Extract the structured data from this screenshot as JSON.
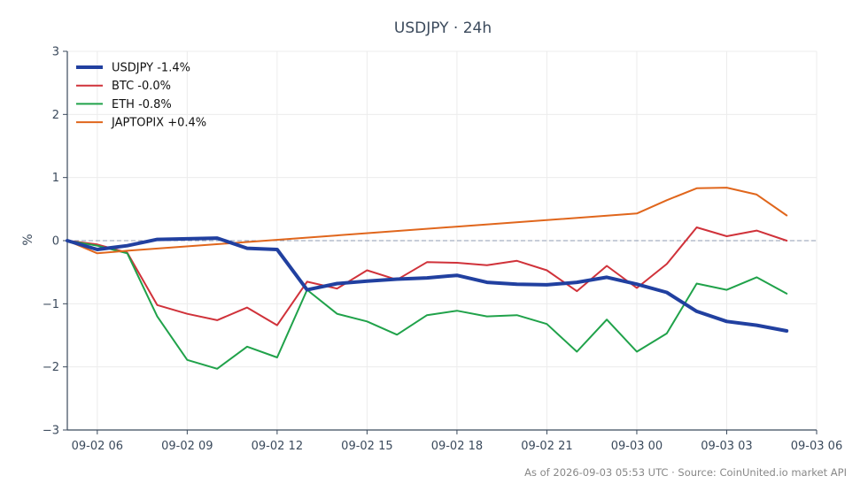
{
  "chart_data": {
    "type": "line",
    "title": "USDJPY · 24h",
    "xlabel": "",
    "ylabel": "%",
    "ylim": [
      -3,
      3
    ],
    "xlim": [
      "2026-09-02T05:00",
      "2026-09-03T06:00"
    ],
    "x_ticks": [
      "09-02 06",
      "09-02 09",
      "09-02 12",
      "09-02 15",
      "09-02 18",
      "09-02 21",
      "09-03 00",
      "09-03 03",
      "09-03 06"
    ],
    "y_ticks": [
      "3",
      "2",
      "1",
      "0",
      "−1",
      "−2",
      "−3"
    ],
    "grid": true,
    "baseline": 0,
    "legend_position": "top-left",
    "series": [
      {
        "name": "USDJPY -1.4%",
        "color": "#2140a0",
        "emphasis": "bold",
        "points": [
          [
            "2026-09-02T05:00",
            0.0
          ],
          [
            "2026-09-02T06:00",
            -0.14
          ],
          [
            "2026-09-02T07:00",
            -0.08
          ],
          [
            "2026-09-02T08:00",
            0.02
          ],
          [
            "2026-09-02T09:00",
            0.03
          ],
          [
            "2026-09-02T10:00",
            0.04
          ],
          [
            "2026-09-02T11:00",
            -0.12
          ],
          [
            "2026-09-02T12:00",
            -0.14
          ],
          [
            "2026-09-02T13:00",
            -0.78
          ],
          [
            "2026-09-02T14:00",
            -0.68
          ],
          [
            "2026-09-02T15:00",
            -0.64
          ],
          [
            "2026-09-02T16:00",
            -0.61
          ],
          [
            "2026-09-02T17:00",
            -0.59
          ],
          [
            "2026-09-02T18:00",
            -0.55
          ],
          [
            "2026-09-02T19:00",
            -0.66
          ],
          [
            "2026-09-02T20:00",
            -0.69
          ],
          [
            "2026-09-02T21:00",
            -0.7
          ],
          [
            "2026-09-02T22:00",
            -0.66
          ],
          [
            "2026-09-02T23:00",
            -0.58
          ],
          [
            "2026-09-03T00:00",
            -0.69
          ],
          [
            "2026-09-03T01:00",
            -0.82
          ],
          [
            "2026-09-03T02:00",
            -1.12
          ],
          [
            "2026-09-03T03:00",
            -1.28
          ],
          [
            "2026-09-03T04:00",
            -1.34
          ],
          [
            "2026-09-03T05:00",
            -1.43
          ]
        ]
      },
      {
        "name": "BTC -0.0%",
        "color": "#d0323a",
        "emphasis": "normal",
        "points": [
          [
            "2026-09-02T05:00",
            0.0
          ],
          [
            "2026-09-02T06:00",
            -0.06
          ],
          [
            "2026-09-02T07:00",
            -0.19
          ],
          [
            "2026-09-02T08:00",
            -1.02
          ],
          [
            "2026-09-02T09:00",
            -1.16
          ],
          [
            "2026-09-02T10:00",
            -1.26
          ],
          [
            "2026-09-02T11:00",
            -1.06
          ],
          [
            "2026-09-02T12:00",
            -1.34
          ],
          [
            "2026-09-02T13:00",
            -0.65
          ],
          [
            "2026-09-02T14:00",
            -0.76
          ],
          [
            "2026-09-02T15:00",
            -0.47
          ],
          [
            "2026-09-02T16:00",
            -0.62
          ],
          [
            "2026-09-02T17:00",
            -0.34
          ],
          [
            "2026-09-02T18:00",
            -0.35
          ],
          [
            "2026-09-02T19:00",
            -0.39
          ],
          [
            "2026-09-02T20:00",
            -0.32
          ],
          [
            "2026-09-02T21:00",
            -0.47
          ],
          [
            "2026-09-02T22:00",
            -0.8
          ],
          [
            "2026-09-02T23:00",
            -0.4
          ],
          [
            "2026-09-03T00:00",
            -0.75
          ],
          [
            "2026-09-03T01:00",
            -0.37
          ],
          [
            "2026-09-03T02:00",
            0.21
          ],
          [
            "2026-09-03T03:00",
            0.07
          ],
          [
            "2026-09-03T04:00",
            0.16
          ],
          [
            "2026-09-03T05:00",
            0.0
          ]
        ]
      },
      {
        "name": "ETH -0.8%",
        "color": "#20a24a",
        "emphasis": "normal",
        "points": [
          [
            "2026-09-02T05:00",
            0.0
          ],
          [
            "2026-09-02T06:00",
            -0.08
          ],
          [
            "2026-09-02T07:00",
            -0.2
          ],
          [
            "2026-09-02T08:00",
            -1.2
          ],
          [
            "2026-09-02T09:00",
            -1.89
          ],
          [
            "2026-09-02T10:00",
            -2.03
          ],
          [
            "2026-09-02T11:00",
            -1.68
          ],
          [
            "2026-09-02T12:00",
            -1.85
          ],
          [
            "2026-09-02T13:00",
            -0.78
          ],
          [
            "2026-09-02T14:00",
            -1.16
          ],
          [
            "2026-09-02T15:00",
            -1.28
          ],
          [
            "2026-09-02T16:00",
            -1.49
          ],
          [
            "2026-09-02T17:00",
            -1.18
          ],
          [
            "2026-09-02T18:00",
            -1.11
          ],
          [
            "2026-09-02T19:00",
            -1.2
          ],
          [
            "2026-09-02T20:00",
            -1.18
          ],
          [
            "2026-09-02T21:00",
            -1.32
          ],
          [
            "2026-09-02T22:00",
            -1.76
          ],
          [
            "2026-09-02T23:00",
            -1.25
          ],
          [
            "2026-09-03T00:00",
            -1.76
          ],
          [
            "2026-09-03T01:00",
            -1.47
          ],
          [
            "2026-09-03T02:00",
            -0.68
          ],
          [
            "2026-09-03T03:00",
            -0.78
          ],
          [
            "2026-09-03T04:00",
            -0.58
          ],
          [
            "2026-09-03T05:00",
            -0.84
          ]
        ]
      },
      {
        "name": "JAPTOPIX +0.4%",
        "color": "#e0661c",
        "emphasis": "normal",
        "points": [
          [
            "2026-09-02T05:00",
            0.0
          ],
          [
            "2026-09-02T06:00",
            -0.2
          ],
          [
            "2026-09-02T07:00",
            -0.16
          ],
          [
            "2026-09-03T00:00",
            0.43
          ],
          [
            "2026-09-03T01:00",
            0.64
          ],
          [
            "2026-09-03T02:00",
            0.83
          ],
          [
            "2026-09-03T03:00",
            0.84
          ],
          [
            "2026-09-03T04:00",
            0.73
          ],
          [
            "2026-09-03T05:00",
            0.4
          ]
        ]
      }
    ]
  },
  "footer": "As of 2026-09-03 05:53 UTC · Source: CoinUnited.io market API"
}
